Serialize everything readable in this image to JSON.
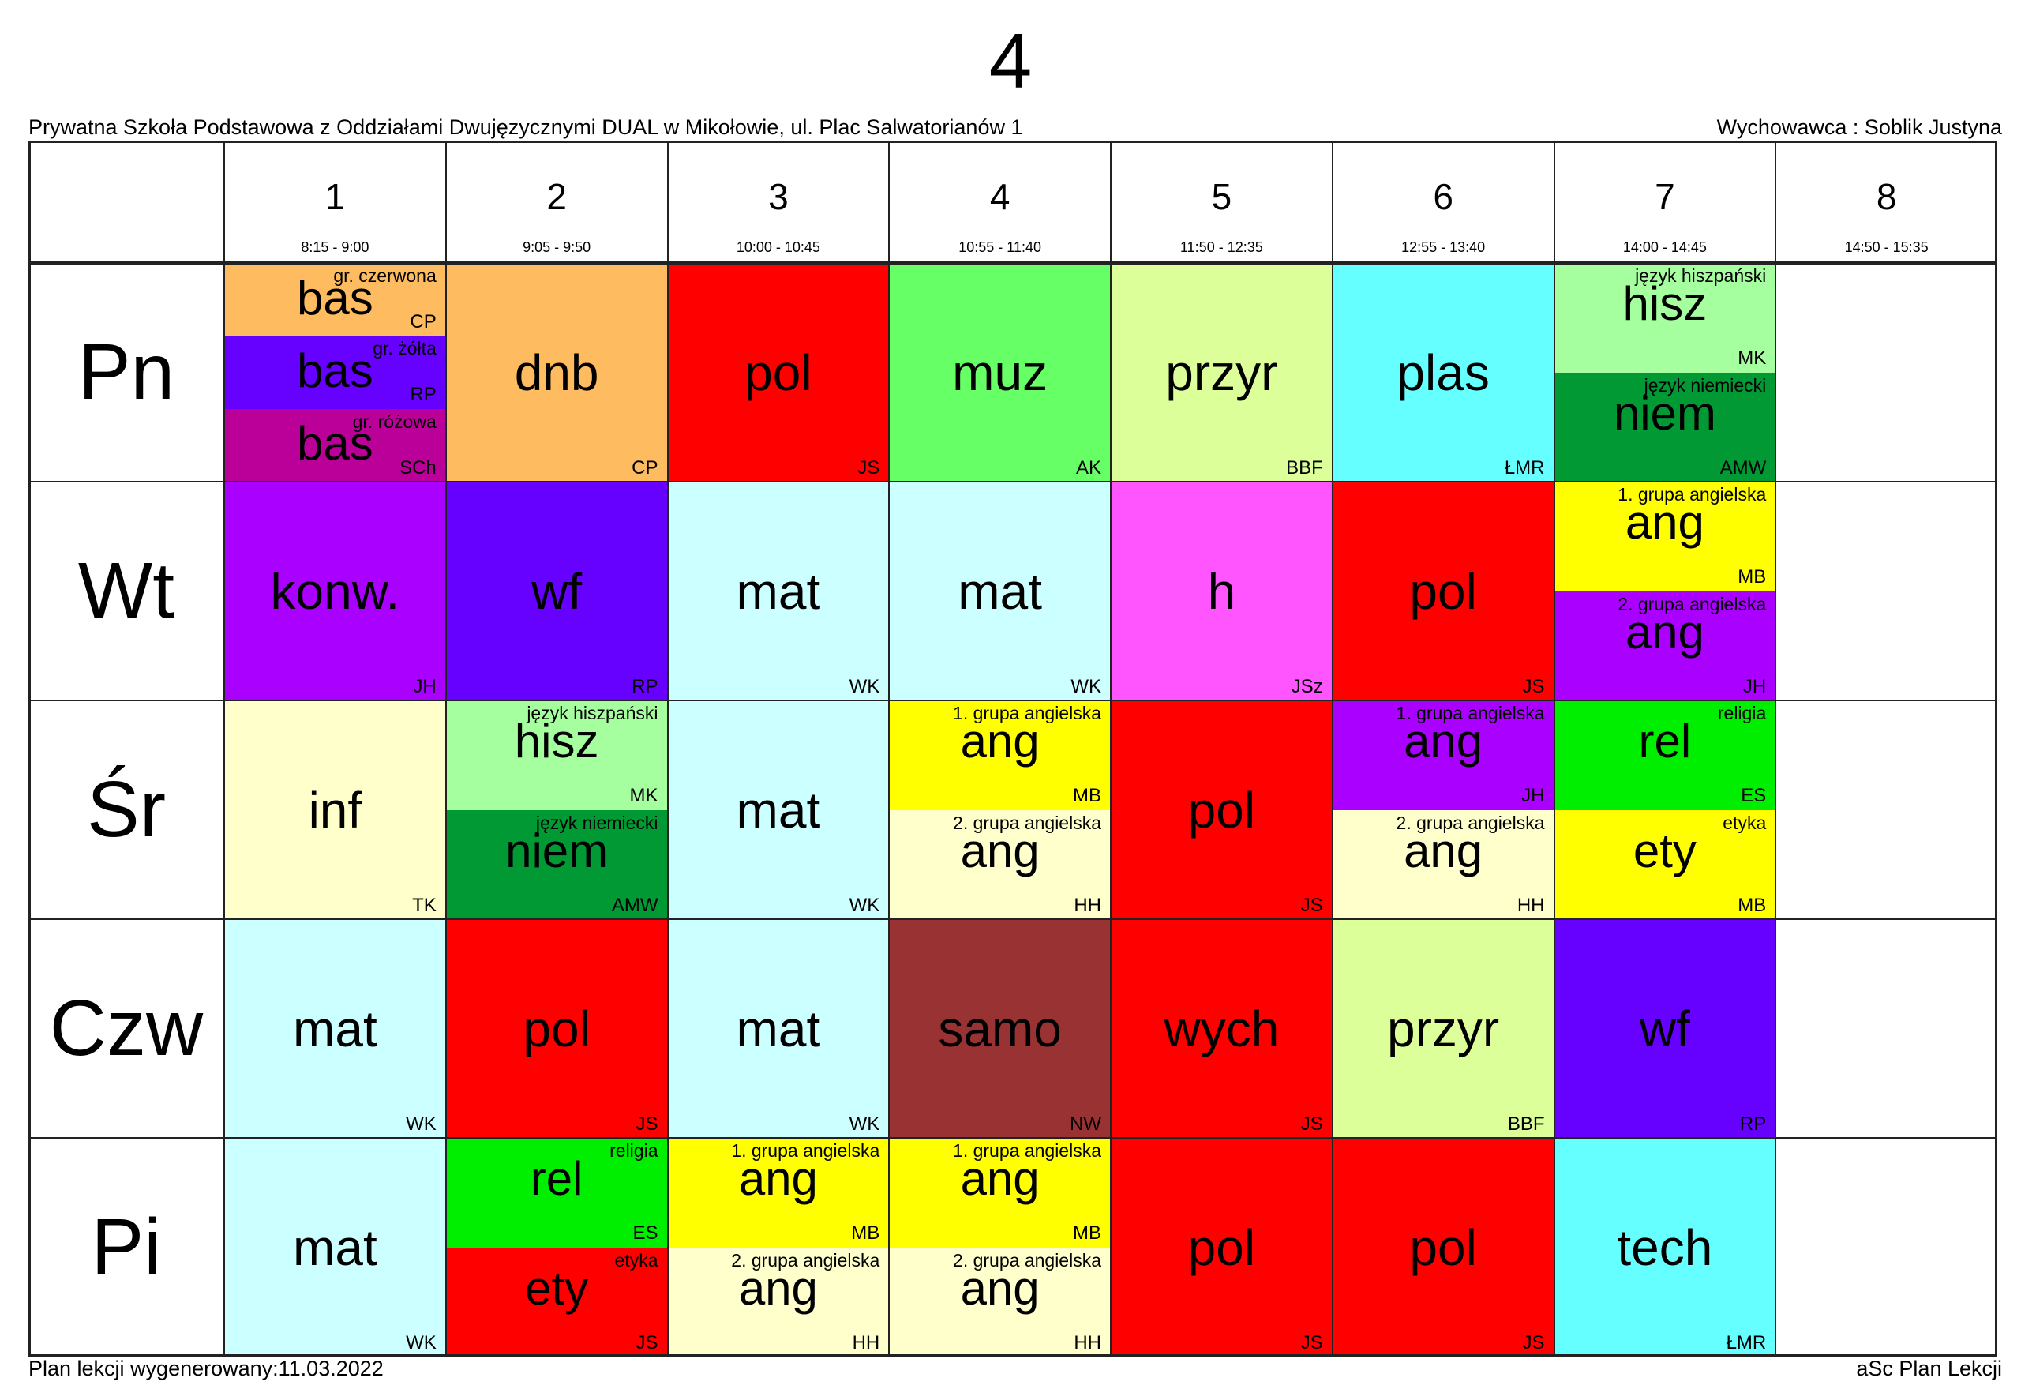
{
  "title": "4",
  "school": "Prywatna Szkoła Podstawowa z Oddziałami Dwujęzycznymi DUAL w Mikołowie, ul. Plac Salwatorianów 1",
  "teacher": "Wychowawca : Soblik Justyna",
  "generated": "Plan lekcji wygenerowany:11.03.2022",
  "footer_brand": "aSc Plan Lekcji",
  "periods": [
    {
      "num": "1",
      "time": "8:15 - 9:00"
    },
    {
      "num": "2",
      "time": "9:05 - 9:50"
    },
    {
      "num": "3",
      "time": "10:00 - 10:45"
    },
    {
      "num": "4",
      "time": "10:55 - 11:40"
    },
    {
      "num": "5",
      "time": "11:50 - 12:35"
    },
    {
      "num": "6",
      "time": "12:55 - 13:40"
    },
    {
      "num": "7",
      "time": "14:00 - 14:45"
    },
    {
      "num": "8",
      "time": "14:50 - 15:35"
    }
  ],
  "days": [
    "Pn",
    "Wt",
    "Śr",
    "Czw",
    "Pi"
  ],
  "lessons": [
    {
      "day": 0,
      "period": 0,
      "parts": [
        {
          "group": "gr. czerwona",
          "subject": "bas",
          "teacher": "CP",
          "color": "#ffbb60"
        },
        {
          "group": "gr. żółta",
          "subject": "bas",
          "teacher": "RP",
          "color": "#6600ff"
        },
        {
          "group": "gr. różowa",
          "subject": "bas",
          "teacher": "SCh",
          "color": "#bb0099"
        }
      ]
    },
    {
      "day": 0,
      "period": 1,
      "parts": [
        {
          "group": "",
          "subject": "dnb",
          "teacher": "CP",
          "color": "#ffbb60"
        }
      ]
    },
    {
      "day": 0,
      "period": 2,
      "parts": [
        {
          "group": "",
          "subject": "pol",
          "teacher": "JS",
          "color": "#ff0000"
        }
      ]
    },
    {
      "day": 0,
      "period": 3,
      "parts": [
        {
          "group": "",
          "subject": "muz",
          "teacher": "AK",
          "color": "#66ff66"
        }
      ]
    },
    {
      "day": 0,
      "period": 4,
      "parts": [
        {
          "group": "",
          "subject": "przyr",
          "teacher": "BBF",
          "color": "#ddff99"
        }
      ]
    },
    {
      "day": 0,
      "period": 5,
      "parts": [
        {
          "group": "",
          "subject": "plas",
          "teacher": "ŁMR",
          "color": "#66ffff"
        }
      ]
    },
    {
      "day": 0,
      "period": 6,
      "parts": [
        {
          "group": "język hiszpański",
          "subject": "hisz",
          "teacher": "MK",
          "color": "#a6ff9e"
        },
        {
          "group": "język niemiecki",
          "subject": "niem",
          "teacher": "AMW",
          "color": "#009933"
        }
      ]
    },
    {
      "day": 1,
      "period": 0,
      "parts": [
        {
          "group": "",
          "subject": "konw.",
          "teacher": "JH",
          "color": "#aa00ff"
        }
      ]
    },
    {
      "day": 1,
      "period": 1,
      "parts": [
        {
          "group": "",
          "subject": "wf",
          "teacher": "RP",
          "color": "#6600ff"
        }
      ]
    },
    {
      "day": 1,
      "period": 2,
      "parts": [
        {
          "group": "",
          "subject": "mat",
          "teacher": "WK",
          "color": "#ccffff"
        }
      ]
    },
    {
      "day": 1,
      "period": 3,
      "parts": [
        {
          "group": "",
          "subject": "mat",
          "teacher": "WK",
          "color": "#ccffff"
        }
      ]
    },
    {
      "day": 1,
      "period": 4,
      "parts": [
        {
          "group": "",
          "subject": "h",
          "teacher": "JSz",
          "color": "#ff55ff"
        }
      ]
    },
    {
      "day": 1,
      "period": 5,
      "parts": [
        {
          "group": "",
          "subject": "pol",
          "teacher": "JS",
          "color": "#ff0000"
        }
      ]
    },
    {
      "day": 1,
      "period": 6,
      "parts": [
        {
          "group": "1. grupa angielska",
          "subject": "ang",
          "teacher": "MB",
          "color": "#ffff00"
        },
        {
          "group": "2. grupa angielska",
          "subject": "ang",
          "teacher": "JH",
          "color": "#aa00ff"
        }
      ]
    },
    {
      "day": 2,
      "period": 0,
      "parts": [
        {
          "group": "",
          "subject": "inf",
          "teacher": "TK",
          "color": "#ffffcc"
        }
      ]
    },
    {
      "day": 2,
      "period": 1,
      "parts": [
        {
          "group": "język hiszpański",
          "subject": "hisz",
          "teacher": "MK",
          "color": "#a6ff9e"
        },
        {
          "group": "język niemiecki",
          "subject": "niem",
          "teacher": "AMW",
          "color": "#009933"
        }
      ]
    },
    {
      "day": 2,
      "period": 2,
      "parts": [
        {
          "group": "",
          "subject": "mat",
          "teacher": "WK",
          "color": "#ccffff"
        }
      ]
    },
    {
      "day": 2,
      "period": 3,
      "parts": [
        {
          "group": "1. grupa angielska",
          "subject": "ang",
          "teacher": "MB",
          "color": "#ffff00"
        },
        {
          "group": "2. grupa angielska",
          "subject": "ang",
          "teacher": "HH",
          "color": "#ffffcc"
        }
      ]
    },
    {
      "day": 2,
      "period": 4,
      "parts": [
        {
          "group": "",
          "subject": "pol",
          "teacher": "JS",
          "color": "#ff0000"
        }
      ]
    },
    {
      "day": 2,
      "period": 5,
      "parts": [
        {
          "group": "1. grupa angielska",
          "subject": "ang",
          "teacher": "JH",
          "color": "#aa00ff"
        },
        {
          "group": "2. grupa angielska",
          "subject": "ang",
          "teacher": "HH",
          "color": "#ffffcc"
        }
      ]
    },
    {
      "day": 2,
      "period": 6,
      "parts": [
        {
          "group": "religia",
          "subject": "rel",
          "teacher": "ES",
          "color": "#00ee00"
        },
        {
          "group": "etyka",
          "subject": "ety",
          "teacher": "MB",
          "color": "#ffff00"
        }
      ]
    },
    {
      "day": 3,
      "period": 0,
      "parts": [
        {
          "group": "",
          "subject": "mat",
          "teacher": "WK",
          "color": "#ccffff"
        }
      ]
    },
    {
      "day": 3,
      "period": 1,
      "parts": [
        {
          "group": "",
          "subject": "pol",
          "teacher": "JS",
          "color": "#ff0000"
        }
      ]
    },
    {
      "day": 3,
      "period": 2,
      "parts": [
        {
          "group": "",
          "subject": "mat",
          "teacher": "WK",
          "color": "#ccffff"
        }
      ]
    },
    {
      "day": 3,
      "period": 3,
      "parts": [
        {
          "group": "",
          "subject": "samo",
          "teacher": "NW",
          "color": "#993333"
        }
      ]
    },
    {
      "day": 3,
      "period": 4,
      "parts": [
        {
          "group": "",
          "subject": "wych",
          "teacher": "JS",
          "color": "#ff0000"
        }
      ]
    },
    {
      "day": 3,
      "period": 5,
      "parts": [
        {
          "group": "",
          "subject": "przyr",
          "teacher": "BBF",
          "color": "#ddff99"
        }
      ]
    },
    {
      "day": 3,
      "period": 6,
      "parts": [
        {
          "group": "",
          "subject": "wf",
          "teacher": "RP",
          "color": "#6600ff"
        }
      ]
    },
    {
      "day": 4,
      "period": 0,
      "parts": [
        {
          "group": "",
          "subject": "mat",
          "teacher": "WK",
          "color": "#ccffff"
        }
      ]
    },
    {
      "day": 4,
      "period": 1,
      "parts": [
        {
          "group": "religia",
          "subject": "rel",
          "teacher": "ES",
          "color": "#00ee00"
        },
        {
          "group": "etyka",
          "subject": "ety",
          "teacher": "JS",
          "color": "#ff0000"
        }
      ]
    },
    {
      "day": 4,
      "period": 2,
      "parts": [
        {
          "group": "1. grupa angielska",
          "subject": "ang",
          "teacher": "MB",
          "color": "#ffff00"
        },
        {
          "group": "2. grupa angielska",
          "subject": "ang",
          "teacher": "HH",
          "color": "#ffffcc"
        }
      ]
    },
    {
      "day": 4,
      "period": 3,
      "parts": [
        {
          "group": "1. grupa angielska",
          "subject": "ang",
          "teacher": "MB",
          "color": "#ffff00"
        },
        {
          "group": "2. grupa angielska",
          "subject": "ang",
          "teacher": "HH",
          "color": "#ffffcc"
        }
      ]
    },
    {
      "day": 4,
      "period": 4,
      "parts": [
        {
          "group": "",
          "subject": "pol",
          "teacher": "JS",
          "color": "#ff0000"
        }
      ]
    },
    {
      "day": 4,
      "period": 5,
      "parts": [
        {
          "group": "",
          "subject": "pol",
          "teacher": "JS",
          "color": "#ff0000"
        }
      ]
    },
    {
      "day": 4,
      "period": 6,
      "parts": [
        {
          "group": "",
          "subject": "tech",
          "teacher": "ŁMR",
          "color": "#66ffff"
        }
      ]
    }
  ]
}
